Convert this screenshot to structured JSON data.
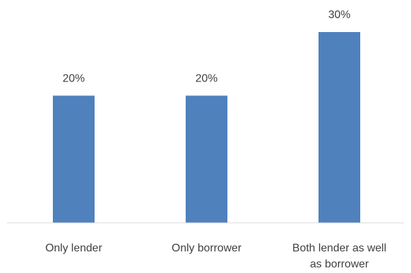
{
  "chart_data": {
    "type": "bar",
    "title": "",
    "xlabel": "",
    "ylabel": "",
    "categories": [
      [
        "Only lender"
      ],
      [
        "Only borrower"
      ],
      [
        "Both lender as well",
        "as borrower"
      ]
    ],
    "values": [
      20,
      20,
      30
    ],
    "value_labels": [
      "20%",
      "20%",
      "30%"
    ],
    "unit": "%",
    "ylim": [
      0,
      30
    ],
    "grid": false,
    "legend": "none",
    "bar_color": "#4f81bd",
    "axis_color": "#d9d9d9",
    "text_color": "#404040"
  }
}
